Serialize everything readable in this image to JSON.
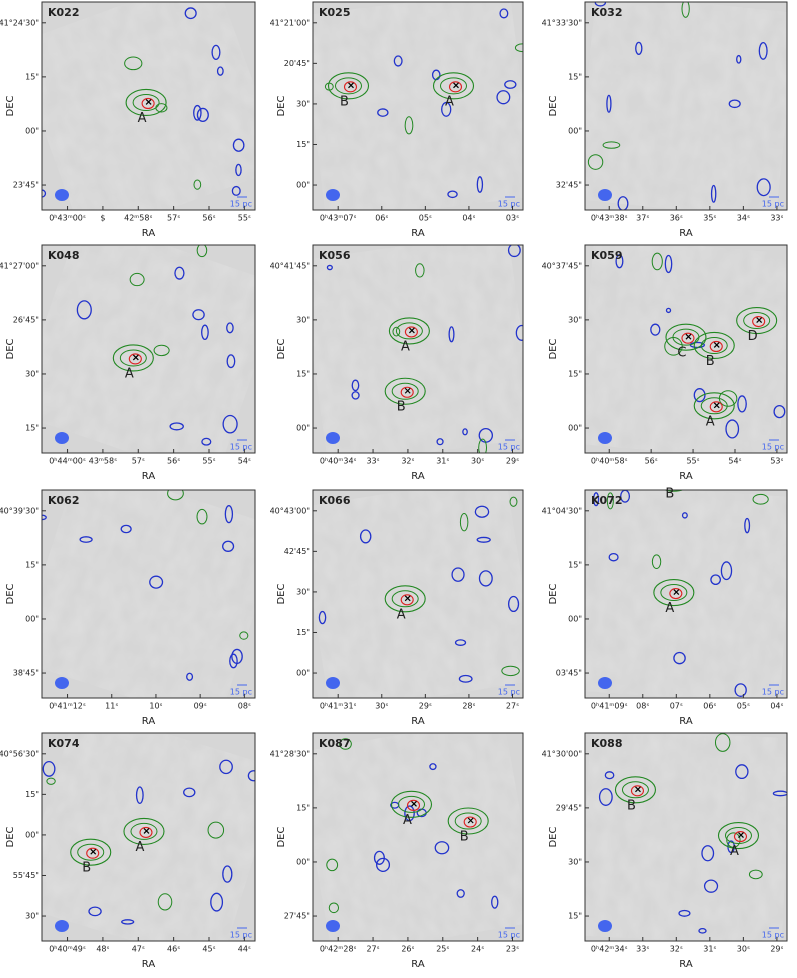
{
  "x_label": "RA",
  "y_label": "DEC",
  "scale_label": "15 pc",
  "panels": [
    {
      "name": "K022",
      "yticks": [
        "41°24'30\"",
        "15\"",
        "00\"",
        "23'45\""
      ],
      "xticks": [
        "0ʰ43ᵐ00ˢ",
        "$",
        "42ᵐ58ˢ",
        "57ˢ",
        "56ˢ",
        "55ˢ"
      ],
      "sources": [
        "A"
      ]
    },
    {
      "name": "K025",
      "yticks": [
        "41°21'00\"",
        "20'45\"",
        "30\"",
        "15\"",
        "00\""
      ],
      "xticks": [
        "0ʰ43ᵐ07ˢ",
        "06ˢ",
        "05ˢ",
        "04ˢ",
        "03ˢ"
      ],
      "sources": [
        "B",
        "A"
      ]
    },
    {
      "name": "K032",
      "yticks": [
        "41°33'30\"",
        "15\"",
        "00\"",
        "32'45\""
      ],
      "xticks": [
        "0ʰ43ᵐ38ˢ",
        "37ˢ",
        "36ˢ",
        "35ˢ",
        "34ˢ",
        "33ˢ"
      ],
      "sources": []
    },
    {
      "name": "K048",
      "yticks": [
        "41°27'00\"",
        "26'45\"",
        "30\"",
        "15\""
      ],
      "xticks": [
        "0ʰ44ᵐ00ˢ",
        "43ᵐ58ˢ",
        "57ˢ",
        "56ˢ",
        "55ˢ",
        "54ˢ"
      ],
      "sources": [
        "A"
      ]
    },
    {
      "name": "K056",
      "yticks": [
        "40°41'45\"",
        "30\"",
        "15\"",
        "00\""
      ],
      "xticks": [
        "0ʰ40ᵐ34ˢ",
        "33ˢ",
        "32ˢ",
        "31ˢ",
        "30ˢ",
        "29ˢ"
      ],
      "sources": [
        "A",
        "B"
      ]
    },
    {
      "name": "K059",
      "yticks": [
        "40°37'45\"",
        "30\"",
        "15\"",
        "00\""
      ],
      "xticks": [
        "0ʰ40ᵐ58ˢ",
        "56ˢ",
        "55ˢ",
        "54ˢ",
        "53ˢ"
      ],
      "sources": [
        "C",
        "B",
        "D",
        "A"
      ]
    },
    {
      "name": "K062",
      "yticks": [
        "40°39'30\"",
        "15\"",
        "00\"",
        "38'45\""
      ],
      "xticks": [
        "0ʰ41ᵐ12ˢ",
        "11ˢ",
        "10ˢ",
        "09ˢ",
        "08ˢ"
      ],
      "sources": []
    },
    {
      "name": "K066",
      "yticks": [
        "40°43'00\"",
        "42'45\"",
        "30\"",
        "15\"",
        "00\""
      ],
      "xticks": [
        "0ʰ41ᵐ31ˢ",
        "30ˢ",
        "29ˢ",
        "28ˢ",
        "27ˢ"
      ],
      "sources": [
        "A"
      ]
    },
    {
      "name": "K072",
      "yticks": [
        "41°04'30\"",
        "15\"",
        "00\"",
        "03'45\""
      ],
      "xticks": [
        "0ʰ41ᵐ09ˢ",
        "08ˢ",
        "07ˢ",
        "06ˢ",
        "05ˢ",
        "04ˢ"
      ],
      "sources": [
        "B",
        "A"
      ]
    },
    {
      "name": "K074",
      "yticks": [
        "40°56'30\"",
        "15\"",
        "00\"",
        "55'45\"",
        "30\""
      ],
      "xticks": [
        "0ʰ40ᵐ49ˢ",
        "48ˢ",
        "47ˢ",
        "46ˢ",
        "45ˢ",
        "44ˢ"
      ],
      "sources": [
        "B",
        "A"
      ]
    },
    {
      "name": "K087",
      "yticks": [
        "41°28'30\"",
        "15\"",
        "00\"",
        "27'45\""
      ],
      "xticks": [
        "0ʰ42ᵐ28ˢ",
        "27ˢ",
        "26ˢ",
        "25ˢ",
        "24ˢ",
        "23ˢ"
      ],
      "sources": [
        "A",
        "B"
      ]
    },
    {
      "name": "K088",
      "yticks": [
        "41°30'00\"",
        "29'45\"",
        "30\"",
        "15\""
      ],
      "xticks": [
        "0ʰ42ᵐ34ˢ",
        "33ˢ",
        "32ˢ",
        "31ˢ",
        "30ˢ",
        "29ˢ"
      ],
      "sources": [
        "B",
        "A"
      ]
    }
  ]
}
